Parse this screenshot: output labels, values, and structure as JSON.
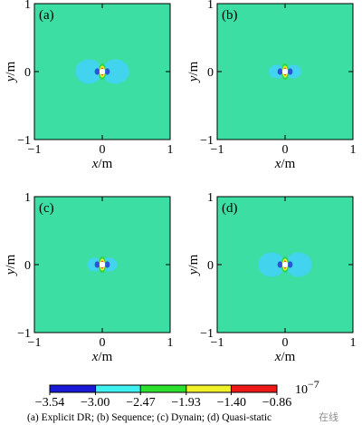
{
  "chart_data": [
    {
      "type": "heatmap",
      "panel_label": "(a)",
      "xlabel": "x",
      "ylabel": "y",
      "unit": "/m",
      "xlim": [
        -1,
        1
      ],
      "ylim": [
        -1,
        1
      ],
      "xticks": [
        "−1",
        "0",
        "1"
      ],
      "yticks": [
        "−1",
        "0",
        "1"
      ],
      "background_level": -2.2,
      "pattern": {
        "lobe_x_extent": 0.36,
        "lobe_y_extent": 0.18,
        "stripe_extent": 0.12
      }
    },
    {
      "type": "heatmap",
      "panel_label": "(b)",
      "xlabel": "x",
      "ylabel": "y",
      "unit": "/m",
      "xlim": [
        -1,
        1
      ],
      "ylim": [
        -1,
        1
      ],
      "xticks": [
        "−1",
        "0",
        "1"
      ],
      "yticks": [
        "−1",
        "0",
        "1"
      ],
      "background_level": -2.2,
      "pattern": {
        "lobe_x_extent": 0.22,
        "lobe_y_extent": 0.1,
        "stripe_extent": 0.12
      }
    },
    {
      "type": "heatmap",
      "panel_label": "(c)",
      "xlabel": "x",
      "ylabel": "y",
      "unit": "/m",
      "xlim": [
        -1,
        1
      ],
      "ylim": [
        -1,
        1
      ],
      "xticks": [
        "−1",
        "0",
        "1"
      ],
      "yticks": [
        "−1",
        "0",
        "1"
      ],
      "background_level": -2.2,
      "pattern": {
        "lobe_x_extent": 0.2,
        "lobe_y_extent": 0.1,
        "stripe_extent": 0.12
      }
    },
    {
      "type": "heatmap",
      "panel_label": "(d)",
      "xlabel": "x",
      "ylabel": "y",
      "unit": "/m",
      "xlim": [
        -1,
        1
      ],
      "ylim": [
        -1,
        1
      ],
      "xticks": [
        "−1",
        "0",
        "1"
      ],
      "yticks": [
        "−1",
        "0",
        "1"
      ],
      "background_level": -2.2,
      "pattern": {
        "lobe_x_extent": 0.36,
        "lobe_y_extent": 0.18,
        "stripe_extent": 0.12
      }
    }
  ],
  "colorbar": {
    "labels": [
      "−3.54",
      "−3.00",
      "−2.47",
      "−1.93",
      "−1.40",
      "−0.86"
    ],
    "exponent_base": "10",
    "exponent": "−7",
    "bins": [
      {
        "min": -3.54,
        "max": -3.0,
        "color": "#1a1ad6"
      },
      {
        "min": -3.0,
        "max": -2.47,
        "color": "#3ff0f0"
      },
      {
        "min": -2.47,
        "max": -1.93,
        "color": "#2ee02e"
      },
      {
        "min": -1.93,
        "max": -1.4,
        "color": "#f0f028"
      },
      {
        "min": -1.4,
        "max": -0.86,
        "color": "#ee1818"
      }
    ]
  },
  "colors": {
    "background_field": "#3cdea4",
    "lobe": "#42d4ee",
    "lobe_core": "#2b55d9",
    "stripe_green": "#2ed64a",
    "stripe_yellow": "#f2ee2a",
    "stripe_red": "#e82222",
    "hole": "#ffffff"
  },
  "caption": "(a)  Explicit DR;  (b)  Sequence;  (c)  Dynain; (d) Quasi-static",
  "watermark": "在线"
}
